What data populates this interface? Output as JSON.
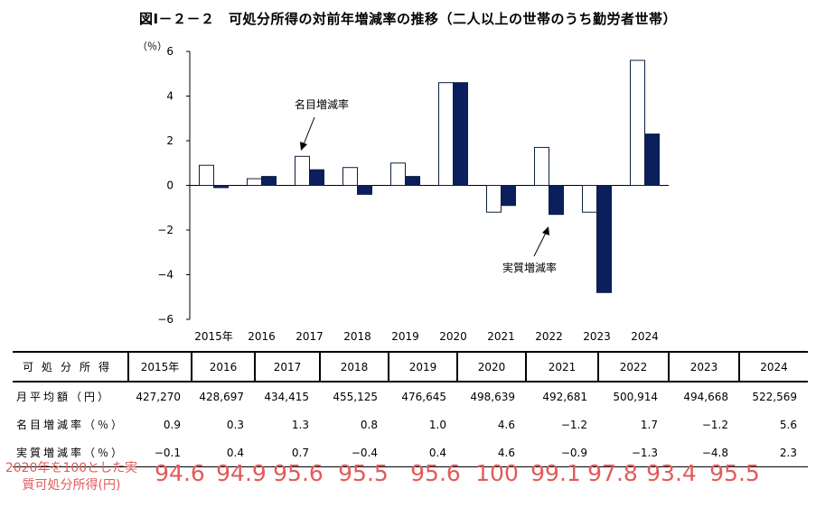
{
  "title": "図Ⅰ－２－２　可処分所得の対前年増減率の推移（二人以上の世帯のうち勤労者世帯）",
  "chart_data": {
    "type": "bar",
    "ylabel": "（％）",
    "ylim": [
      -6,
      6
    ],
    "yticks": [
      "6",
      "4",
      "2",
      "0",
      "−2",
      "−4",
      "−6"
    ],
    "categories": [
      "2015年",
      "2016",
      "2017",
      "2018",
      "2019",
      "2020",
      "2021",
      "2022",
      "2023",
      "2024"
    ],
    "series": [
      {
        "name": "名目増減率",
        "color": "#ffffff",
        "values": [
          0.9,
          0.3,
          1.3,
          0.8,
          1.0,
          4.6,
          -1.2,
          1.7,
          -1.2,
          5.6
        ]
      },
      {
        "name": "実質増減率",
        "color": "#0b1f5c",
        "values": [
          -0.1,
          0.4,
          0.7,
          -0.4,
          0.4,
          4.6,
          -0.9,
          -1.3,
          -4.8,
          2.3
        ]
      }
    ],
    "annotations": [
      "名目増減率",
      "実質増減率"
    ],
    "grid": false,
    "legend": "none"
  },
  "table": {
    "header": "可処分所得",
    "columns": [
      "2015年",
      "2016",
      "2017",
      "2018",
      "2019",
      "2020",
      "2021",
      "2022",
      "2023",
      "2024"
    ],
    "rows": [
      {
        "label": "月平均額（円）",
        "values": [
          "427,270",
          "428,697",
          "434,415",
          "455,125",
          "476,645",
          "498,639",
          "492,681",
          "500,914",
          "494,668",
          "522,569"
        ]
      },
      {
        "label": "名目増減率（％）",
        "values": [
          "0.9",
          "0.3",
          "1.3",
          "0.8",
          "1.0",
          "4.6",
          "−1.2",
          "1.7",
          "−1.2",
          "5.6"
        ]
      },
      {
        "label": "実質増減率（％）",
        "values": [
          "−0.1",
          "0.4",
          "0.7",
          "−0.4",
          "0.4",
          "4.6",
          "−0.9",
          "−1.3",
          "−4.8",
          "2.3"
        ]
      }
    ]
  },
  "overlay": {
    "label": "2020年を100とした実質可処分所得(円)",
    "color": "#e35a5a",
    "values": [
      "94.6",
      "94.9",
      "95.6",
      "95.5",
      "95.6",
      "100",
      "99.1",
      "97.8",
      "93.4",
      "95.5"
    ]
  }
}
